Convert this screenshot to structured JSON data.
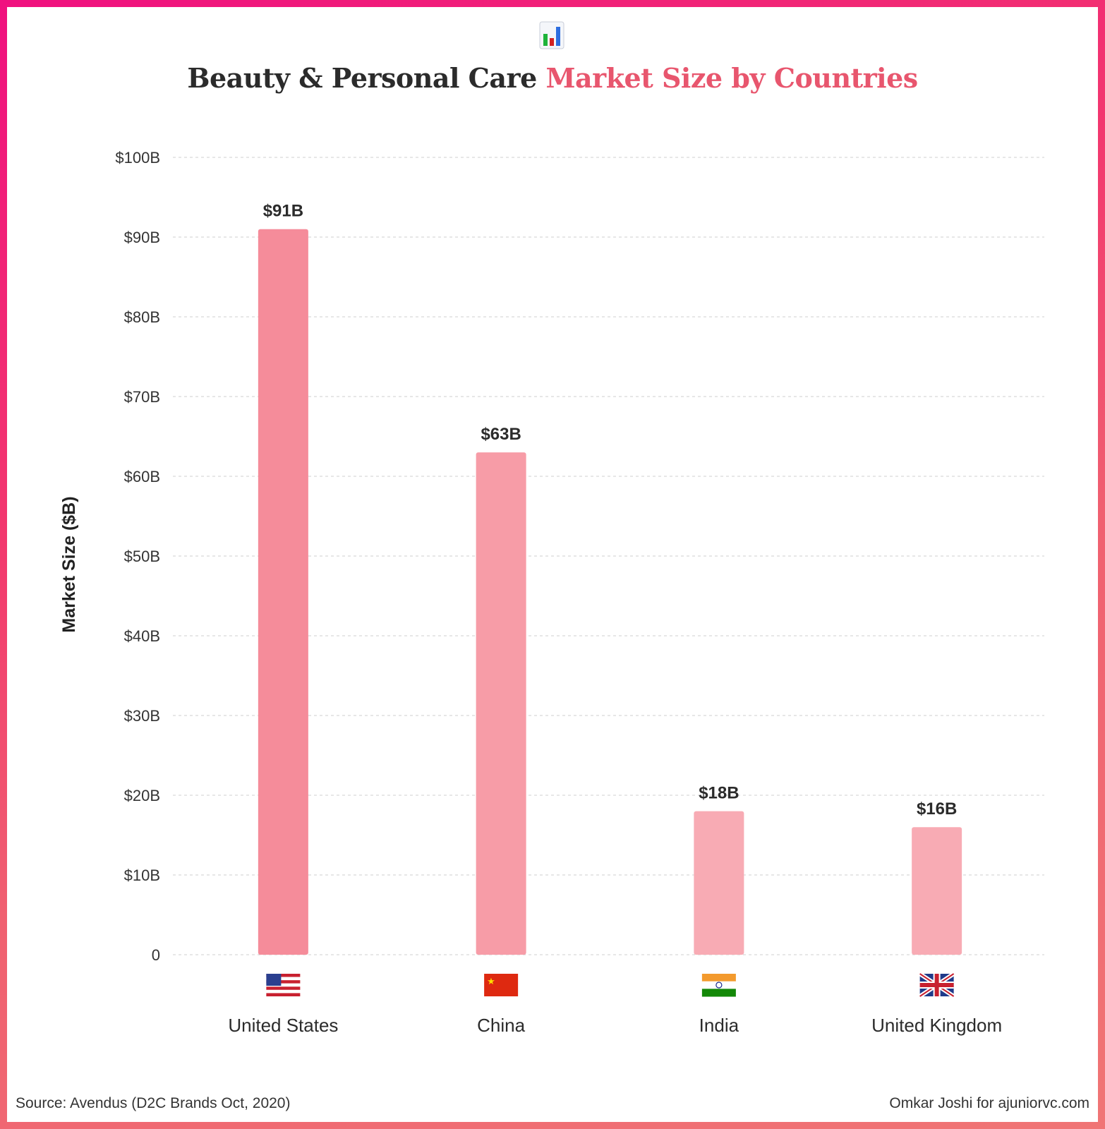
{
  "title": {
    "main": "Beauty & Personal Care ",
    "accent": "Market Size by Countries",
    "icon": "bar-chart-icon"
  },
  "chart_data": {
    "type": "bar",
    "categories": [
      "United States",
      "China",
      "India",
      "United Kingdom"
    ],
    "flags": [
      "us-flag-icon",
      "cn-flag-icon",
      "in-flag-icon",
      "gb-flag-icon"
    ],
    "values": [
      91,
      63,
      18,
      16
    ],
    "value_labels": [
      "$91B",
      "$63B",
      "$18B",
      "$16B"
    ],
    "ylabel": "Market Size ($B)",
    "ylim": [
      0,
      100
    ],
    "yticks": [
      0,
      10,
      20,
      30,
      40,
      50,
      60,
      70,
      80,
      90,
      100
    ],
    "ytick_labels": [
      "0",
      "$10B",
      "$20B",
      "$30B",
      "$40B",
      "$50B",
      "$60B",
      "$70B",
      "$80B",
      "$90B",
      "$100B"
    ],
    "grid": true,
    "bar_colors": [
      "#f58c9a",
      "#f79ca7",
      "#f8abb4",
      "#f8abb4"
    ]
  },
  "footer": {
    "source": "Source: Avendus (D2C Brands Oct, 2020)",
    "credit": "Omkar Joshi for ajuniorvc.com"
  }
}
